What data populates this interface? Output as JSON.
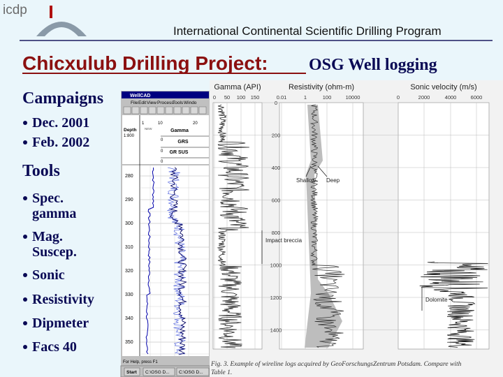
{
  "header": {
    "logo": "icdp",
    "title": "International Continental Scientific Drilling Program"
  },
  "slide": {
    "title": "Chicxulub Drilling Project:",
    "subtitle": "OSG Well logging",
    "sections": [
      {
        "heading": "Campaigns",
        "items": [
          [
            "Dec. 2001"
          ],
          [
            "Feb. 2002"
          ]
        ]
      },
      {
        "heading": "Tools",
        "items": [
          [
            "Spec.",
            "gamma"
          ],
          [
            "Mag.",
            "Suscep."
          ],
          [
            "Sonic"
          ],
          [
            "Resistivity"
          ],
          [
            "Dipmeter"
          ],
          [
            "Facs 40"
          ]
        ]
      }
    ]
  },
  "wellcad": {
    "title": "WellCAD",
    "menu": [
      "File",
      "Edit",
      "View",
      "Process",
      "Tools",
      "Windo"
    ],
    "depth_label": "Depth",
    "scale": "1:800",
    "unit": "NEW",
    "scale_ticks": [
      "1",
      "10",
      "20"
    ],
    "tracks": [
      "Gamma",
      "GRS",
      "GR SUS"
    ],
    "track_zero": "0",
    "depths": [
      "280",
      "290",
      "300",
      "310",
      "320",
      "330",
      "340",
      "350"
    ],
    "status": "For Help, press F1",
    "taskbar": [
      "Start",
      "C:\\OSG D...",
      "C:\\OSG D..."
    ]
  },
  "figure": {
    "panels": [
      {
        "title": "Gamma (API)",
        "ticks": [
          "0",
          "50",
          "100",
          "150"
        ]
      },
      {
        "title": "Resistivity (ohm-m)",
        "ticks": [
          "0.01",
          "1",
          "100",
          "10000"
        ]
      },
      {
        "title": "Sonic velocity (m/s)",
        "ticks": [
          "0",
          "2000",
          "4000",
          "6000"
        ]
      }
    ],
    "depths": [
      "0",
      "200",
      "400",
      "600",
      "800",
      "1000",
      "1200",
      "1400"
    ],
    "annotations": {
      "shallow": "Shallow",
      "deep": "Deep",
      "breccia": "Impact breccia",
      "dolomite": "Dolomite"
    },
    "caption_lines": [
      "Fig. 3. Example of wireline logs acquired by GeoForschungsZentrum Potsdam. Compare with",
      "Table 1."
    ]
  }
}
